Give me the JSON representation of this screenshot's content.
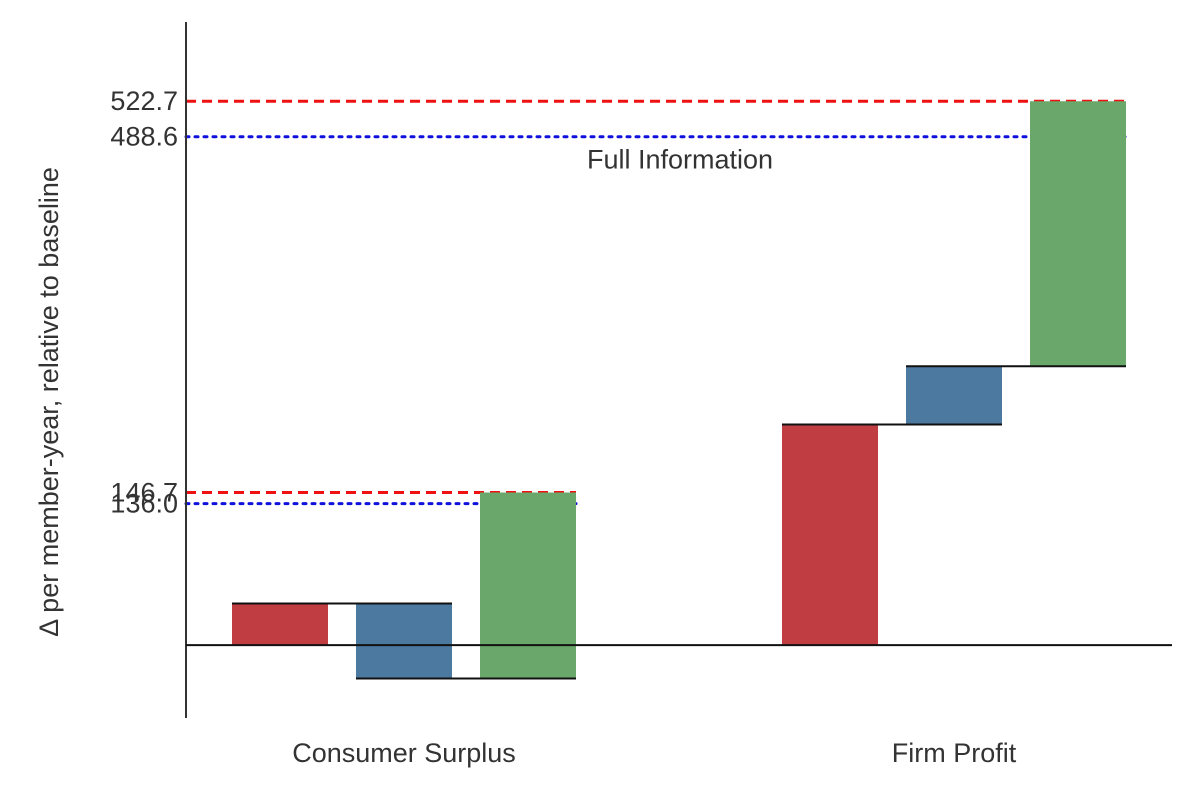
{
  "chart_data": {
    "type": "bar",
    "subtype": "waterfall",
    "title": "",
    "xlabel": "",
    "ylabel": "Δ per member-year, relative to baseline",
    "ylim": [
      -70,
      595
    ],
    "grid": false,
    "legend": "none",
    "baseline": 0,
    "yticks": [
      {
        "value": 522.7,
        "label": "522.7"
      },
      {
        "value": 488.6,
        "label": "488.6"
      },
      {
        "value": 146.7,
        "label": "146.7"
      },
      {
        "value": 136.0,
        "label": "136.0"
      }
    ],
    "groups": [
      {
        "category": "Consumer Surplus",
        "steps": [
          {
            "start": 0,
            "end": 40,
            "color": "#c03d42"
          },
          {
            "start": 40,
            "end": -32,
            "color": "#4c79a0"
          },
          {
            "start": -32,
            "end": 146.7,
            "color": "#69a86a"
          }
        ],
        "reference_lines": [
          {
            "value": 146.7,
            "style": "dashed",
            "color": "#ee1111"
          },
          {
            "value": 136.0,
            "style": "dotted",
            "color": "#1111dd"
          }
        ]
      },
      {
        "category": "Firm Profit",
        "steps": [
          {
            "start": 0,
            "end": 212,
            "color": "#c03d42"
          },
          {
            "start": 212,
            "end": 268,
            "color": "#4c79a0"
          },
          {
            "start": 268,
            "end": 522.7,
            "color": "#69a86a"
          }
        ],
        "reference_lines": [
          {
            "value": 522.7,
            "style": "dashed",
            "color": "#ee1111"
          },
          {
            "value": 488.6,
            "style": "dotted",
            "color": "#1111dd"
          }
        ]
      }
    ],
    "annotations": [
      {
        "text": "Full Information",
        "value": 488.6,
        "group": 1
      }
    ],
    "colors": {
      "connector": "#111111",
      "axis": "#333333"
    }
  }
}
